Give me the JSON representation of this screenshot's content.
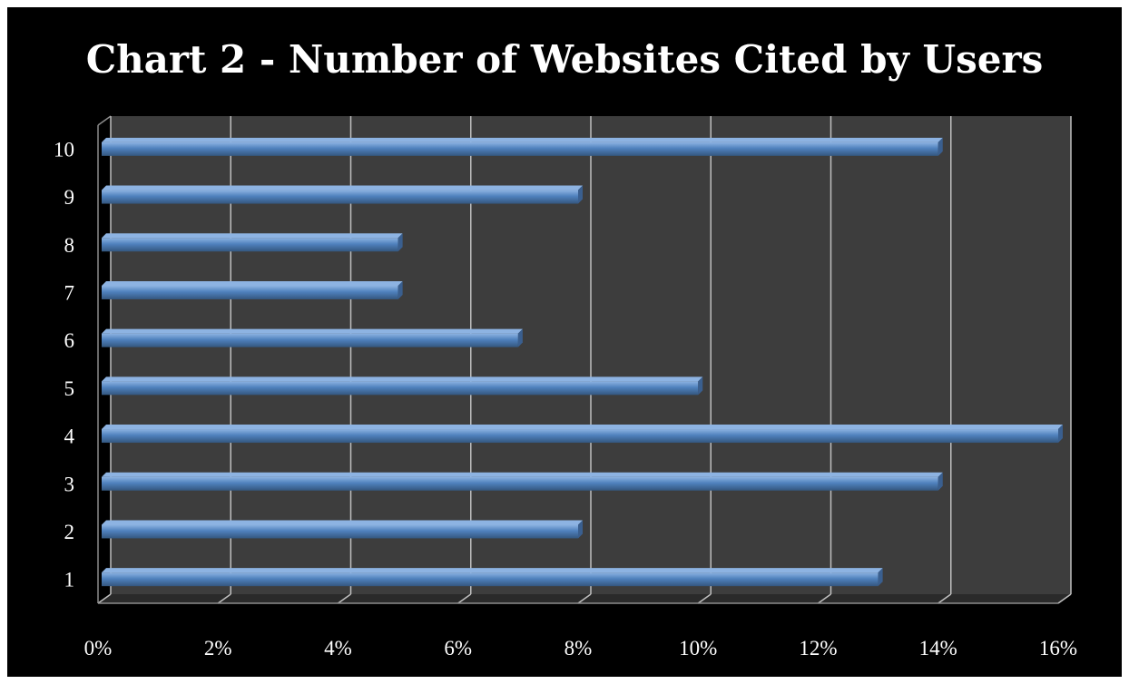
{
  "chart_data": {
    "type": "bar",
    "orientation": "horizontal",
    "style": "3d",
    "title": "Chart 2 - Number of Websites Cited by Users",
    "xlabel": "",
    "ylabel": "",
    "categories": [
      "1",
      "2",
      "3",
      "4",
      "5",
      "6",
      "7",
      "8",
      "9",
      "10"
    ],
    "values": [
      13,
      8,
      14,
      16,
      10,
      7,
      5,
      5,
      8,
      14
    ],
    "value_unit": "%",
    "xlim": [
      0,
      16
    ],
    "x_ticks": [
      "0%",
      "2%",
      "4%",
      "6%",
      "8%",
      "10%",
      "12%",
      "14%",
      "16%"
    ],
    "grid": true,
    "legend": "none",
    "colors": {
      "background": "#000000",
      "plot_area": "#3d3d3d",
      "floor": "#2a2a2a",
      "gridline": "#bfbfbf",
      "bar": "#4f81bd",
      "bar_top": "#8db3e2",
      "bar_end": "#3a5f8f",
      "text": "#ffffff"
    }
  }
}
